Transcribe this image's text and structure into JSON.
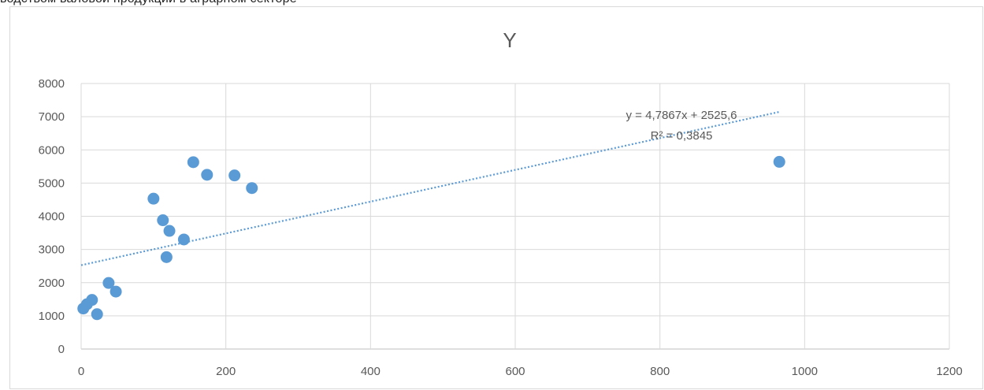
{
  "caption": "водством валовой продукции в аграрном секторе",
  "chart_data": {
    "type": "scatter",
    "title": "Y",
    "xlabel": "",
    "ylabel": "",
    "xlim": [
      0,
      1200
    ],
    "ylim": [
      0,
      8000
    ],
    "x_ticks": [
      "0",
      "200",
      "400",
      "600",
      "800",
      "1000",
      "1200"
    ],
    "y_ticks": [
      "0",
      "1000",
      "2000",
      "3000",
      "4000",
      "5000",
      "6000",
      "7000",
      "8000"
    ],
    "grid": true,
    "point_color": "#5b9bd5",
    "series": [
      {
        "points": [
          {
            "x": 3,
            "y": 1220
          },
          {
            "x": 8,
            "y": 1350
          },
          {
            "x": 15,
            "y": 1480
          },
          {
            "x": 22,
            "y": 1050
          },
          {
            "x": 38,
            "y": 1990
          },
          {
            "x": 48,
            "y": 1730
          },
          {
            "x": 100,
            "y": 4530
          },
          {
            "x": 113,
            "y": 3880
          },
          {
            "x": 118,
            "y": 2770
          },
          {
            "x": 122,
            "y": 3560
          },
          {
            "x": 142,
            "y": 3300
          },
          {
            "x": 155,
            "y": 5630
          },
          {
            "x": 174,
            "y": 5250
          },
          {
            "x": 212,
            "y": 5230
          },
          {
            "x": 236,
            "y": 4850
          },
          {
            "x": 965,
            "y": 5640
          }
        ]
      }
    ],
    "trendline": {
      "type": "linear",
      "slope": 4.7867,
      "intercept": 2525.6,
      "x_range": [
        0,
        965
      ],
      "equation_label": "y = 4,7867x + 2525,6",
      "r2_label": "R² = 0,3845",
      "color": "#5b9bd5"
    }
  }
}
